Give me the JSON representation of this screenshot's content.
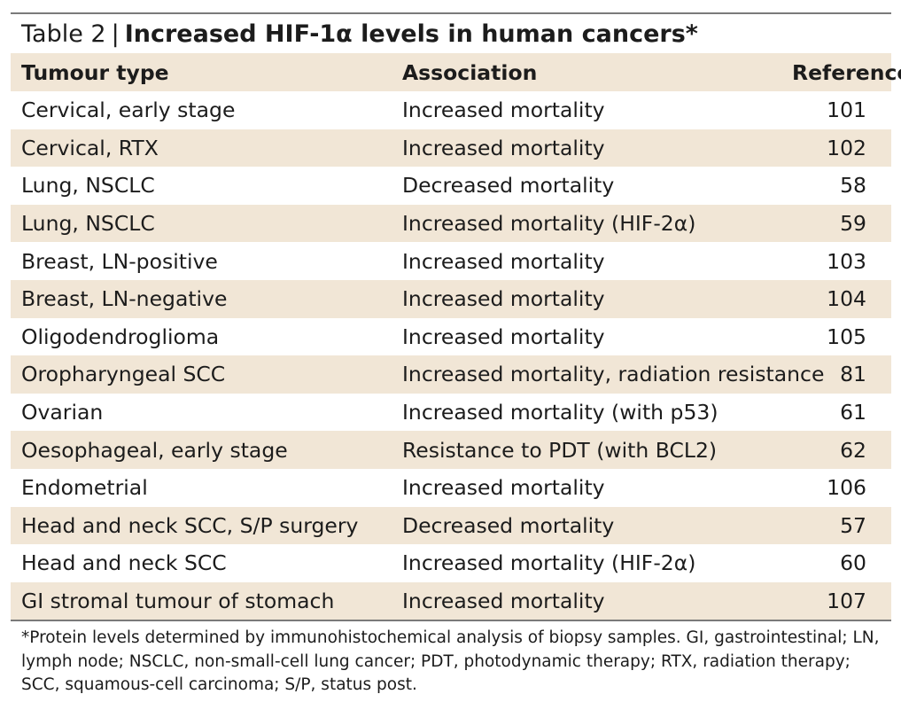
{
  "table": {
    "label": "Table 2",
    "separator": "|",
    "title": "Increased HIF-1α levels in human cancers*",
    "headers": [
      "Tumour type",
      "Association",
      "References"
    ],
    "rows": [
      [
        "Cervical, early stage",
        "Increased mortality",
        "101"
      ],
      [
        "Cervical, RTX",
        "Increased mortality",
        "102"
      ],
      [
        "Lung, NSCLC",
        "Decreased mortality",
        "58"
      ],
      [
        "Lung, NSCLC",
        "Increased mortality (HIF-2α)",
        "59"
      ],
      [
        "Breast, LN-positive",
        "Increased mortality",
        "103"
      ],
      [
        "Breast, LN-negative",
        "Increased mortality",
        "104"
      ],
      [
        "Oligodendroglioma",
        "Increased mortality",
        "105"
      ],
      [
        "Oropharyngeal SCC",
        "Increased mortality, radiation resistance",
        "81"
      ],
      [
        "Ovarian",
        "Increased mortality (with p53)",
        "61"
      ],
      [
        "Oesophageal, early stage",
        "Resistance to PDT (with BCL2)",
        "62"
      ],
      [
        "Endometrial",
        "Increased mortality",
        "106"
      ],
      [
        "Head and neck SCC, S/P surgery",
        "Decreased mortality",
        "57"
      ],
      [
        "Head and neck SCC",
        "Increased mortality (HIF-2α)",
        "60"
      ],
      [
        "GI stromal tumour of stomach",
        "Increased mortality",
        "107"
      ]
    ],
    "footnote": "*Protein levels determined by immunohistochemical analysis of biopsy samples. GI, gastrointestinal; LN, lymph node; NSCLC, non-small-cell lung cancer; PDT, photodynamic therapy; RTX, radiation therapy; SCC, squamous-cell carcinoma; S/P, status post.",
    "colors": {
      "band": "#f1e6d6",
      "rule": "#7a7a7a",
      "text": "#1c1c1c"
    }
  }
}
